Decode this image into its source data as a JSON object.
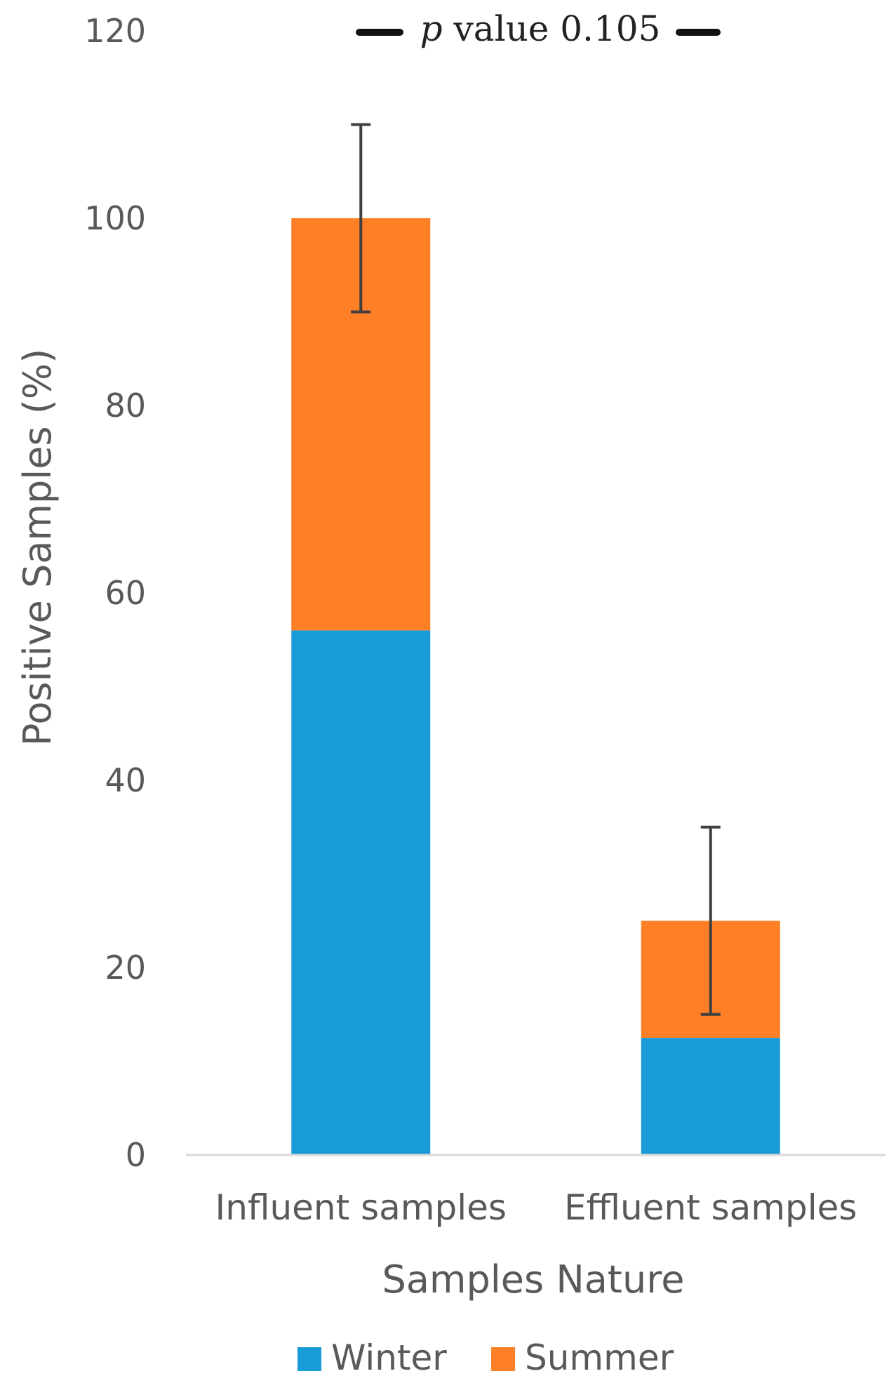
{
  "chart_data": {
    "type": "bar",
    "stacked": true,
    "categories": [
      "Influent samples",
      "Effluent samples"
    ],
    "series": [
      {
        "name": "Winter",
        "values": [
          56,
          12.5
        ],
        "color": "#199BD6"
      },
      {
        "name": "Summer",
        "values": [
          44,
          12.5
        ],
        "color": "#FF7F27"
      }
    ],
    "error_bars": {
      "applies_to": "total",
      "values": [
        10,
        10
      ],
      "color": "#404040"
    },
    "xlabel": "Samples Nature",
    "ylabel": "Positive Samples (%)",
    "ylim": [
      0,
      120
    ],
    "yticks": [
      "0",
      "20",
      "40",
      "60",
      "80",
      "100",
      "120"
    ],
    "grid": false,
    "legend": {
      "position": "bottom",
      "entries": [
        "Winter",
        "Summer"
      ]
    },
    "annotation": {
      "symbol": "p",
      "text": "value 0.105"
    }
  }
}
